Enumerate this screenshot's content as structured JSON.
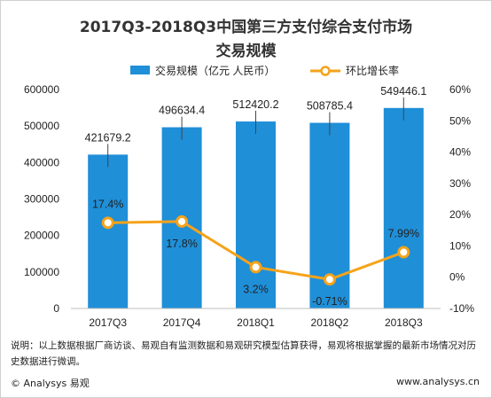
{
  "title_line1": "2017Q3-2018Q3中国第三方支付综合支付市场",
  "title_line2": "交易规模",
  "note": "说明：以上数据根据厂商访谈、易观自有监测数据和易观研究模型估算获得，易观将根据掌握的最新市场情况对历史数据进行微调。",
  "footer": {
    "left": "© Analysys 易观",
    "right": "www.analysys.cn"
  },
  "colors": {
    "bar": "#1f8fd8",
    "line": "#f5a31a",
    "marker_fill": "#ffffff"
  },
  "chart_data": {
    "type": "bar+line",
    "categories": [
      "2017Q3",
      "2017Q4",
      "2018Q1",
      "2018Q2",
      "2018Q3"
    ],
    "series": [
      {
        "name": "交易规模（亿元 人民币）",
        "type": "bar",
        "axis": "left",
        "values": [
          421679.2,
          496634.4,
          512420.2,
          508785.4,
          549446.1
        ],
        "labels": [
          "421679.2",
          "496634.4",
          "512420.2",
          "508785.4",
          "549446.1"
        ]
      },
      {
        "name": "环比增长率",
        "type": "line",
        "axis": "right",
        "values": [
          17.4,
          17.8,
          3.2,
          -0.71,
          7.99
        ],
        "labels": [
          "17.4%",
          "17.8%",
          "3.2%",
          "-0.71%",
          "7.99%"
        ]
      }
    ],
    "y_left": {
      "min": 0,
      "max": 600000,
      "ticks": [
        0,
        100000,
        200000,
        300000,
        400000,
        500000,
        600000
      ],
      "tick_labels": [
        "0",
        "100000",
        "200000",
        "300000",
        "400000",
        "500000",
        "600000"
      ]
    },
    "y_right": {
      "min": -10,
      "max": 60,
      "ticks": [
        -10,
        0,
        10,
        20,
        30,
        40,
        50,
        60
      ],
      "tick_labels": [
        "-10%",
        "0%",
        "10%",
        "20%",
        "30%",
        "40%",
        "50%",
        "60%"
      ]
    },
    "legend_position": "top",
    "grid": false
  }
}
